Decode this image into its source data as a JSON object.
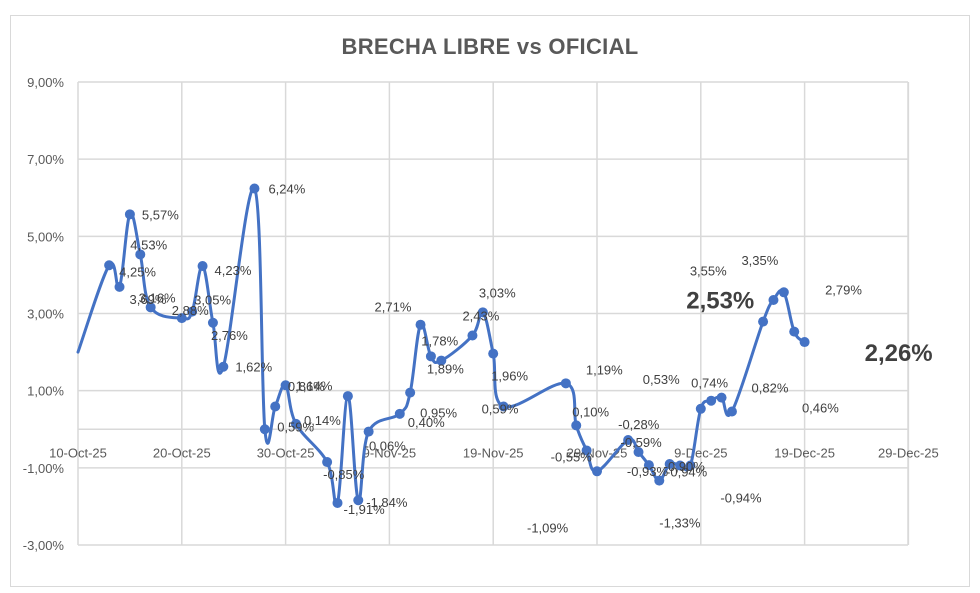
{
  "chart_data": {
    "type": "line",
    "title": "BRECHA LIBRE vs OFICIAL",
    "xlabel": "",
    "ylabel": "",
    "ylim": [
      -3.0,
      9.0
    ],
    "y_ticks": [
      "9,00%",
      "7,00%",
      "5,00%",
      "3,00%",
      "1,00%",
      "-1,00%",
      "-3,00%"
    ],
    "y_tick_values": [
      9,
      7,
      5,
      3,
      1,
      -1,
      -3
    ],
    "x_ticks": [
      "10-Oct-25",
      "20-Oct-25",
      "30-Oct-25",
      "9-Nov-25",
      "19-Nov-25",
      "29-Nov-25",
      "9-Dec-25",
      "19-Dec-25",
      "29-Dec-25"
    ],
    "grid": true,
    "legend": null,
    "line_color": "#4472c4",
    "series": [
      {
        "name": "Brecha",
        "points": [
          {
            "x": "10-Oct-25",
            "y": 2.0,
            "label": ""
          },
          {
            "x": "13-Oct-25",
            "y": 4.25,
            "label": "4,25%"
          },
          {
            "x": "14-Oct-25",
            "y": 3.69,
            "label": "3,69%"
          },
          {
            "x": "15-Oct-25",
            "y": 5.57,
            "label": "5,57%"
          },
          {
            "x": "16-Oct-25",
            "y": 4.53,
            "label": "4,53%"
          },
          {
            "x": "17-Oct-25",
            "y": 3.16,
            "label": "3,16%"
          },
          {
            "x": "20-Oct-25",
            "y": 2.88,
            "label": "2,88%"
          },
          {
            "x": "21-Oct-25",
            "y": 3.05,
            "label": "3,05%"
          },
          {
            "x": "22-Oct-25",
            "y": 4.23,
            "label": "4,23%"
          },
          {
            "x": "23-Oct-25",
            "y": 2.76,
            "label": "2,76%"
          },
          {
            "x": "24-Oct-25",
            "y": 1.62,
            "label": "1,62%"
          },
          {
            "x": "27-Oct-25",
            "y": 6.24,
            "label": "6,24%"
          },
          {
            "x": "28-Oct-25",
            "y": 0.0,
            "label": ""
          },
          {
            "x": "29-Oct-25",
            "y": 0.59,
            "label": "0,59%"
          },
          {
            "x": "30-Oct-25",
            "y": 1.14,
            "label": "1,14%"
          },
          {
            "x": "31-Oct-25",
            "y": 0.14,
            "label": "0,14%"
          },
          {
            "x": "3-Nov-25",
            "y": -0.85,
            "label": "-0,85%"
          },
          {
            "x": "4-Nov-25",
            "y": -1.91,
            "label": "-1,91%"
          },
          {
            "x": "5-Nov-25",
            "y": 0.86,
            "label": "0,86%"
          },
          {
            "x": "6-Nov-25",
            "y": -1.84,
            "label": "-1,84%"
          },
          {
            "x": "7-Nov-25",
            "y": -0.06,
            "label": "-0,06%"
          },
          {
            "x": "10-Nov-25",
            "y": 0.4,
            "label": "0,40%"
          },
          {
            "x": "11-Nov-25",
            "y": 0.95,
            "label": "0,95%"
          },
          {
            "x": "12-Nov-25",
            "y": 2.71,
            "label": "2,71%"
          },
          {
            "x": "13-Nov-25",
            "y": 1.89,
            "label": "1,89%"
          },
          {
            "x": "14-Nov-25",
            "y": 1.78,
            "label": "1,78%"
          },
          {
            "x": "17-Nov-25",
            "y": 2.43,
            "label": "2,43%"
          },
          {
            "x": "18-Nov-25",
            "y": 3.03,
            "label": "3,03%"
          },
          {
            "x": "19-Nov-25",
            "y": 1.96,
            "label": "1,96%"
          },
          {
            "x": "20-Nov-25",
            "y": 0.59,
            "label": "0,59%"
          },
          {
            "x": "26-Nov-25",
            "y": 1.19,
            "label": "1,19%"
          },
          {
            "x": "27-Nov-25",
            "y": 0.1,
            "label": "0,10%"
          },
          {
            "x": "28-Nov-25",
            "y": -0.55,
            "label": "-0,55%"
          },
          {
            "x": "29-Nov-25",
            "y": -1.09,
            "label": "-1,09%"
          },
          {
            "x": "2-Dec-25",
            "y": -0.28,
            "label": "-0,28%"
          },
          {
            "x": "3-Dec-25",
            "y": -0.59,
            "label": "-0,59%"
          },
          {
            "x": "4-Dec-25",
            "y": -0.93,
            "label": "-0,93%"
          },
          {
            "x": "5-Dec-25",
            "y": -1.33,
            "label": "-1,33%"
          },
          {
            "x": "6-Dec-25",
            "y": -0.9,
            "label": "-0,90%"
          },
          {
            "x": "7-Dec-25",
            "y": -0.94,
            "label": "-0,94%"
          },
          {
            "x": "8-Dec-25",
            "y": -0.94,
            "label": "-0,94%"
          },
          {
            "x": "9-Dec-25",
            "y": 0.53,
            "label": "0,53%"
          },
          {
            "x": "10-Dec-25",
            "y": 0.74,
            "label": "0,74%"
          },
          {
            "x": "11-Dec-25",
            "y": 0.82,
            "label": "0,82%"
          },
          {
            "x": "12-Dec-25",
            "y": 0.46,
            "label": "0,46%"
          },
          {
            "x": "15-Dec-25",
            "y": 2.79,
            "label": "2,79%"
          },
          {
            "x": "16-Dec-25",
            "y": 3.35,
            "label": "3,35%"
          },
          {
            "x": "17-Dec-25",
            "y": 3.55,
            "label": "3,55%"
          },
          {
            "x": "18-Dec-25",
            "y": 2.53,
            "label": "2,53%"
          },
          {
            "x": "19-Dec-25",
            "y": 2.26,
            "label": "2,26%"
          }
        ]
      }
    ],
    "highlighted_labels": [
      "2,53%",
      "2,26%"
    ]
  }
}
